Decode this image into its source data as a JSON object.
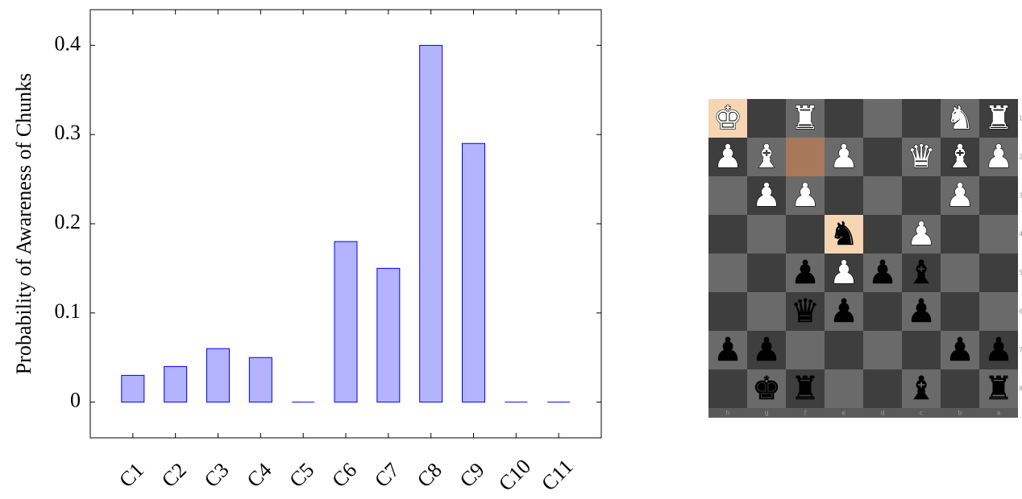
{
  "chart_data": {
    "type": "bar",
    "ylabel": "Probability of Awareness of Chunks",
    "categories": [
      "C1",
      "C2",
      "C3",
      "C4",
      "C5",
      "C6",
      "C7",
      "C8",
      "C9",
      "C10",
      "C11"
    ],
    "values": [
      0.03,
      0.04,
      0.06,
      0.05,
      0,
      0.18,
      0.15,
      0.4,
      0.29,
      0,
      0
    ],
    "color": "#b3b3ff",
    "edge_color": "#0000ff",
    "ylim": [
      -0.04,
      0.44
    ],
    "yticks": [
      0,
      0.1,
      0.2,
      0.3,
      0.4
    ],
    "grid": false
  },
  "chessboard": {
    "files": [
      "h",
      "g",
      "f",
      "e",
      "d",
      "c",
      "b",
      "a"
    ],
    "ranks": [
      "1",
      "2",
      "3",
      "4",
      "5",
      "6",
      "7",
      "8"
    ]
  }
}
